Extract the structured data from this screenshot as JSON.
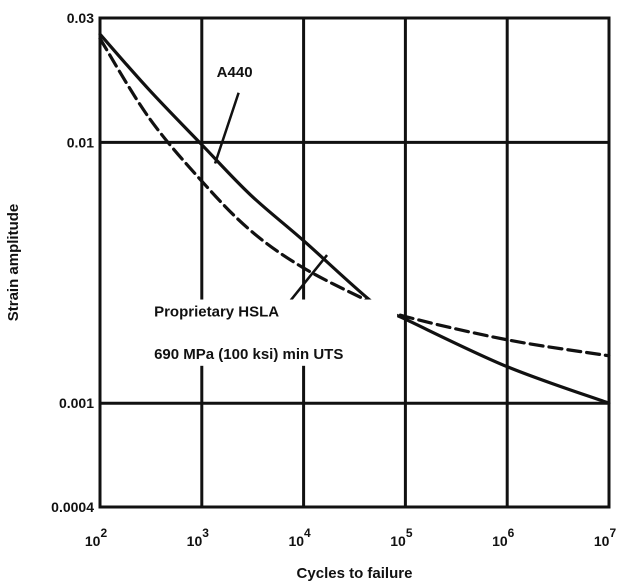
{
  "chart_data": {
    "type": "line",
    "title": "",
    "xlabel": "Cycles to failure",
    "ylabel": "Strain amplitude",
    "xscale": "log",
    "yscale": "log",
    "xlim": [
      100,
      10000000
    ],
    "ylim": [
      0.0004,
      0.03
    ],
    "x_ticks": [
      {
        "value": 100,
        "base": "10",
        "exp": "2"
      },
      {
        "value": 1000,
        "base": "10",
        "exp": "3"
      },
      {
        "value": 10000,
        "base": "10",
        "exp": "4"
      },
      {
        "value": 100000,
        "base": "10",
        "exp": "5"
      },
      {
        "value": 1000000,
        "base": "10",
        "exp": "6"
      },
      {
        "value": 10000000,
        "base": "10",
        "exp": "7"
      }
    ],
    "y_ticks": [
      {
        "value": 0.03,
        "label": "0.03"
      },
      {
        "value": 0.01,
        "label": "0.01"
      },
      {
        "value": 0.001,
        "label": "0.001"
      },
      {
        "value": 0.0004,
        "label": "0.0004"
      }
    ],
    "grid": true,
    "series": [
      {
        "name": "A440",
        "style": "solid",
        "x": [
          100,
          300,
          1000,
          3000,
          10000,
          50000,
          100000,
          1000000,
          10000000
        ],
        "y": [
          0.026,
          0.016,
          0.0098,
          0.0063,
          0.0042,
          0.0024,
          0.0021,
          0.00138,
          0.001
        ]
      },
      {
        "name": "Proprietary HSLA 690 MPa (100 ksi) min UTS",
        "style": "dashed",
        "x": [
          100,
          300,
          1000,
          3000,
          10000,
          50000,
          100000,
          1000000,
          10000000
        ],
        "y": [
          0.025,
          0.0125,
          0.0071,
          0.0046,
          0.0033,
          0.0024,
          0.00215,
          0.00175,
          0.00152
        ]
      }
    ],
    "annotations": {
      "a440": "A440",
      "hsla_line1": "Proprietary HSLA",
      "hsla_line2": "690 MPa (100 ksi) min UTS"
    }
  }
}
